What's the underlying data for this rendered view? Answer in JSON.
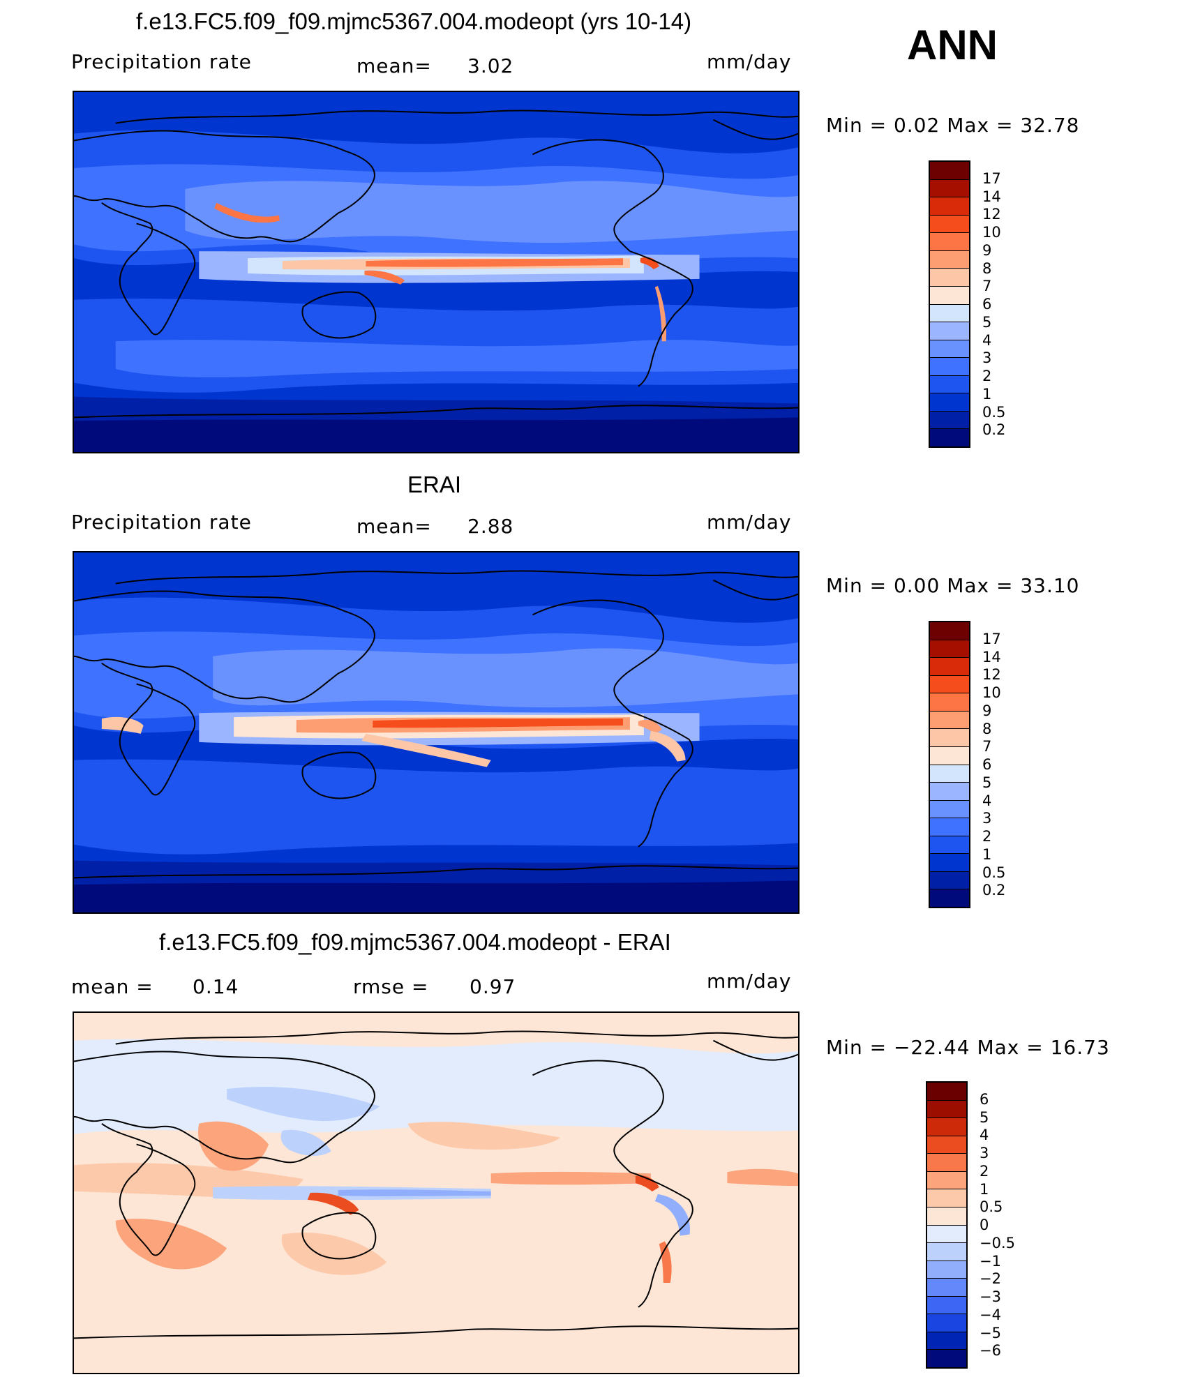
{
  "season": "ANN",
  "panels": [
    {
      "title": "f.e13.FC5.f09_f09.mjmc5367.004.modeopt (yrs 10-14)",
      "left_label": "Precipitation  rate",
      "mid_label": "mean=",
      "mid_value": "3.02",
      "units": "mm/day",
      "min_text": "Min  =     0.02  Max  =    32.78",
      "palette": [
        "#000a7a",
        "#0020a8",
        "#0035d0",
        "#1e55f0",
        "#3f72ff",
        "#6a92ff",
        "#9bb6ff",
        "#d2e5fc",
        "#fde6d6",
        "#fdc6a6",
        "#fd9e72",
        "#fd7545",
        "#f54d1c",
        "#d92b0a",
        "#a50f00",
        "#6d0000"
      ],
      "ticks": [
        "17",
        "14",
        "12",
        "10",
        "9",
        "8",
        "7",
        "6",
        "5",
        "4",
        "3",
        "2",
        "1",
        "0.5",
        "0.2"
      ]
    },
    {
      "title": "ERAI",
      "left_label": "Precipitation  rate",
      "mid_label": "mean=",
      "mid_value": "2.88",
      "units": "mm/day",
      "min_text": "Min  =     0.00  Max  =    33.10",
      "palette": [
        "#000a7a",
        "#0020a8",
        "#0035d0",
        "#1e55f0",
        "#3f72ff",
        "#6a92ff",
        "#9bb6ff",
        "#d2e5fc",
        "#fde6d6",
        "#fdc6a6",
        "#fd9e72",
        "#fd7545",
        "#f54d1c",
        "#d92b0a",
        "#a50f00",
        "#6d0000"
      ],
      "ticks": [
        "17",
        "14",
        "12",
        "10",
        "9",
        "8",
        "7",
        "6",
        "5",
        "4",
        "3",
        "2",
        "1",
        "0.5",
        "0.2"
      ]
    },
    {
      "title": "f.e13.FC5.f09_f09.mjmc5367.004.modeopt - ERAI",
      "left_label": "mean  =",
      "left_value": "0.14",
      "mid_label": "rmse  =",
      "mid_value": "0.97",
      "units": "mm/day",
      "min_text": "Min  = −22.44  Max  =    16.73",
      "palette": [
        "#000a7a",
        "#0024b4",
        "#1a45e0",
        "#3d66f5",
        "#6488fa",
        "#90aefc",
        "#bcd2fd",
        "#e2ecfd",
        "#fde6d6",
        "#fdc9ab",
        "#fca47b",
        "#f8784b",
        "#ec4d20",
        "#cc2a08",
        "#9c0e00",
        "#6a0000"
      ],
      "ticks": [
        "6",
        "5",
        "4",
        "3",
        "2",
        "1",
        "0.5",
        "0",
        "−0.5",
        "−1",
        "−2",
        "−3",
        "−4",
        "−5",
        "−6"
      ]
    }
  ]
}
